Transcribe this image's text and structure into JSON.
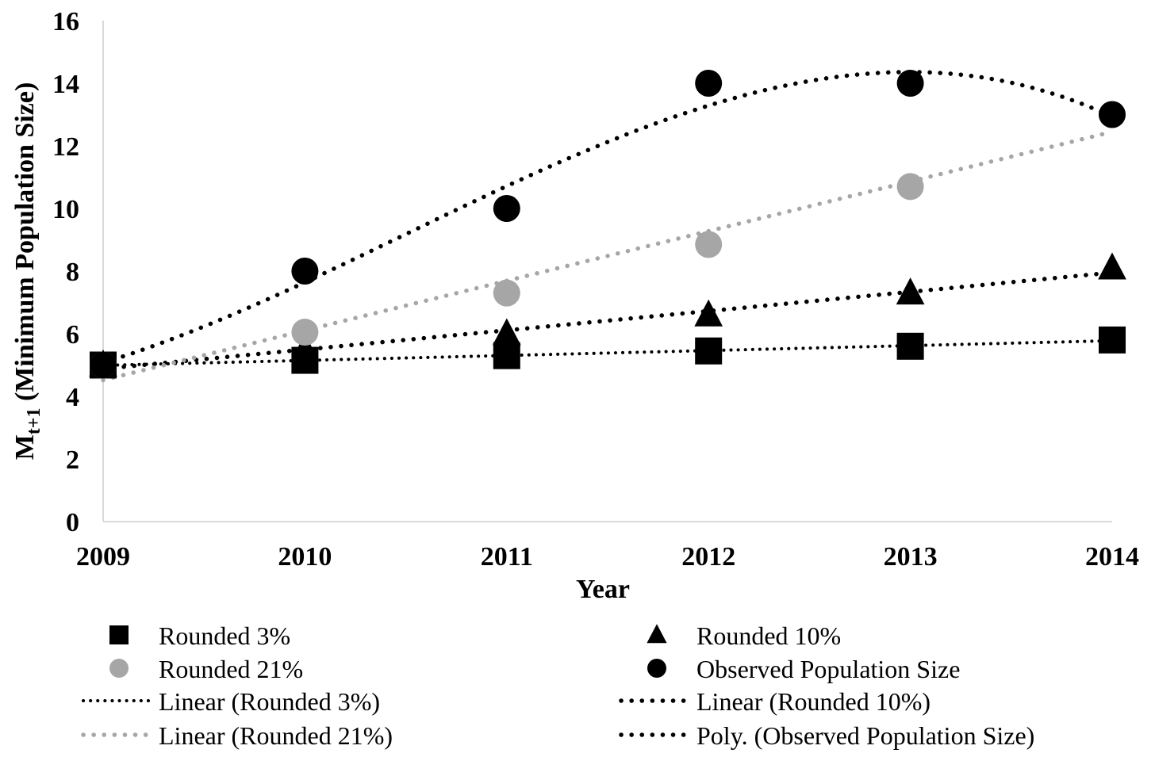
{
  "chart_data": {
    "type": "scatter",
    "title": "",
    "xlabel": "Year",
    "ylabel": {
      "base": "M",
      "subscript": "t+1",
      "rest": " (Minimum Population Size)"
    },
    "x": [
      "2009",
      "2010",
      "2011",
      "2012",
      "2013",
      "2014"
    ],
    "ylim": [
      0,
      16
    ],
    "yticks": [
      "0",
      "2",
      "4",
      "6",
      "8",
      "10",
      "12",
      "14",
      "16"
    ],
    "grid": false,
    "legend_position": "bottom",
    "series": [
      {
        "name": "Rounded 3%",
        "marker": "square",
        "color": "#000000",
        "values": [
          5.0,
          5.15,
          5.3,
          5.45,
          5.6,
          5.8
        ]
      },
      {
        "name": "Rounded 10%",
        "marker": "triangle",
        "color": "#000000",
        "values": [
          5.0,
          5.5,
          6.0,
          6.6,
          7.3,
          8.1
        ]
      },
      {
        "name": "Rounded 21%",
        "marker": "circle",
        "color": "#a6a6a6",
        "values": [
          5.0,
          6.05,
          7.3,
          8.85,
          10.7,
          13.0
        ]
      },
      {
        "name": "Observed Population Size",
        "marker": "circle",
        "color": "#000000",
        "values": [
          5,
          8,
          10,
          14,
          14,
          13
        ]
      }
    ],
    "trendlines": [
      {
        "name": "Linear (Rounded 3%)",
        "fit": "linear",
        "of": "Rounded 3%",
        "color": "#000000",
        "style": "fine-dotted"
      },
      {
        "name": "Linear (Rounded 10%)",
        "fit": "linear",
        "of": "Rounded 10%",
        "color": "#000000",
        "style": "dotted"
      },
      {
        "name": "Linear (Rounded 21%)",
        "fit": "linear",
        "of": "Rounded 21%",
        "color": "#a6a6a6",
        "style": "dotted"
      },
      {
        "name": "Poly. (Observed Population Size)",
        "fit": "poly3",
        "of": "Observed Population Size",
        "color": "#000000",
        "style": "dotted"
      }
    ]
  }
}
